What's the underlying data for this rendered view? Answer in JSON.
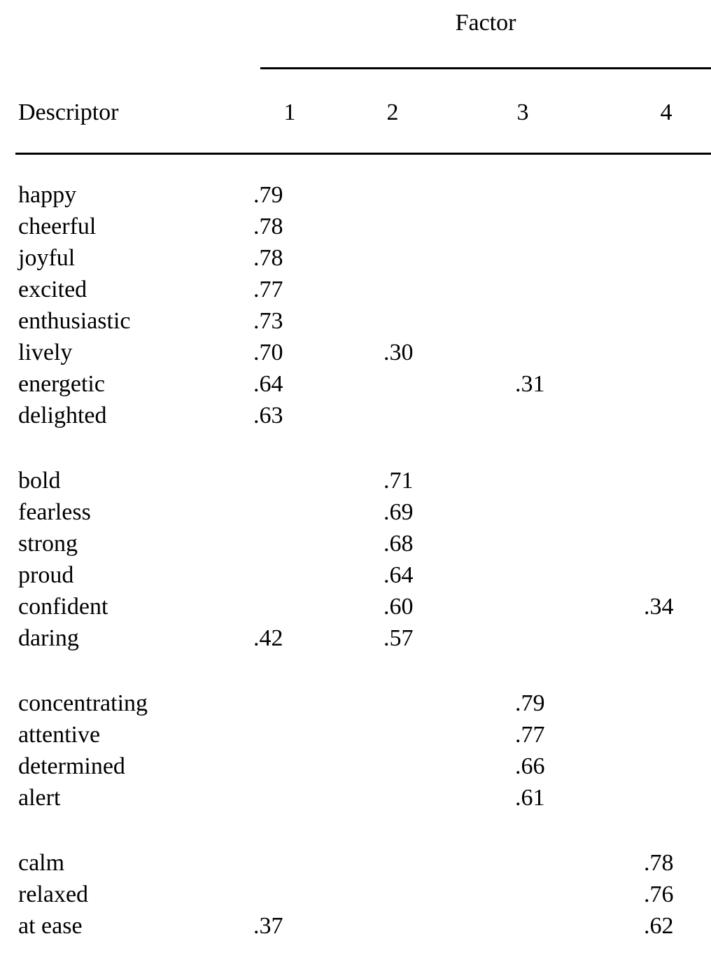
{
  "table": {
    "factor_group_header": "Factor",
    "descriptor_header": "Descriptor",
    "factor_columns": [
      "1",
      "2",
      "3",
      "4"
    ],
    "groups": [
      {
        "rows": [
          {
            "label": "happy",
            "values": [
              ".79",
              "",
              "",
              ""
            ]
          },
          {
            "label": "cheerful",
            "values": [
              ".78",
              "",
              "",
              ""
            ]
          },
          {
            "label": "joyful",
            "values": [
              ".78",
              "",
              "",
              ""
            ]
          },
          {
            "label": "excited",
            "values": [
              ".77",
              "",
              "",
              ""
            ]
          },
          {
            "label": "enthusiastic",
            "values": [
              ".73",
              "",
              "",
              ""
            ]
          },
          {
            "label": "lively",
            "values": [
              ".70",
              ".30",
              "",
              ""
            ]
          },
          {
            "label": "energetic",
            "values": [
              ".64",
              "",
              ".31",
              ""
            ]
          },
          {
            "label": "delighted",
            "values": [
              ".63",
              "",
              "",
              ""
            ]
          }
        ]
      },
      {
        "rows": [
          {
            "label": "bold",
            "values": [
              "",
              ".71",
              "",
              ""
            ]
          },
          {
            "label": "fearless",
            "values": [
              "",
              ".69",
              "",
              ""
            ]
          },
          {
            "label": "strong",
            "values": [
              "",
              ".68",
              "",
              ""
            ]
          },
          {
            "label": "proud",
            "values": [
              "",
              ".64",
              "",
              ""
            ]
          },
          {
            "label": "confident",
            "values": [
              "",
              ".60",
              "",
              ".34"
            ]
          },
          {
            "label": "daring",
            "values": [
              ".42",
              ".57",
              "",
              ""
            ]
          }
        ]
      },
      {
        "rows": [
          {
            "label": "concentrating",
            "values": [
              "",
              "",
              ".79",
              ""
            ]
          },
          {
            "label": "attentive",
            "values": [
              "",
              "",
              ".77",
              ""
            ]
          },
          {
            "label": "determined",
            "values": [
              "",
              "",
              ".66",
              ""
            ]
          },
          {
            "label": "alert",
            "values": [
              "",
              "",
              ".61",
              ""
            ]
          }
        ]
      },
      {
        "rows": [
          {
            "label": "calm",
            "values": [
              "",
              "",
              "",
              ".78"
            ]
          },
          {
            "label": "relaxed",
            "values": [
              "",
              "",
              "",
              ".76"
            ]
          },
          {
            "label": "at ease",
            "values": [
              ".37",
              "",
              "",
              ".62"
            ]
          }
        ]
      }
    ]
  }
}
